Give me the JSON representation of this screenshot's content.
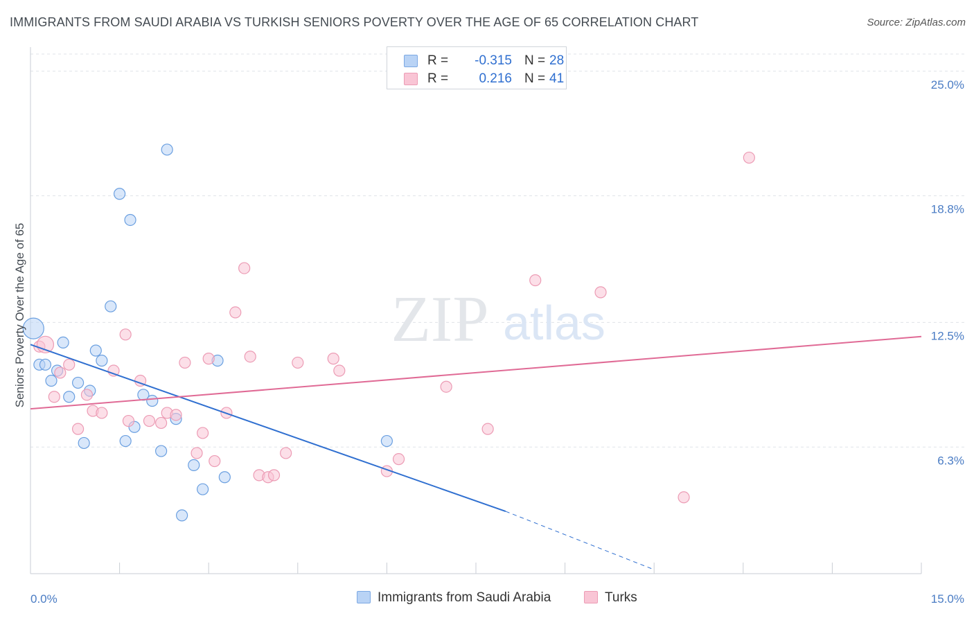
{
  "title": "IMMIGRANTS FROM SAUDI ARABIA VS TURKISH SENIORS POVERTY OVER THE AGE OF 65 CORRELATION CHART",
  "source": "Source: ZipAtlas.com",
  "watermark": {
    "zip": "ZIP",
    "atlas": "atlas"
  },
  "legend": {
    "r_label": "R =",
    "n_label": "N =",
    "rows": [
      {
        "r": "-0.315",
        "n": "28",
        "fill": "#b9d3f5",
        "stroke": "#7ba8e3"
      },
      {
        "r": "0.216",
        "n": "41",
        "fill": "#f9c5d5",
        "stroke": "#ec9bb4"
      }
    ]
  },
  "bottom_legend": [
    "Immigrants from Saudi Arabia",
    "Turks"
  ],
  "colors": {
    "blue": "#6a9fe0",
    "blue_line": "#2f6fd0",
    "pink": "#ec9bb4",
    "pink_line": "#e06a95",
    "tick": "#4a7cc4"
  },
  "chart_data": {
    "type": "scatter",
    "ylabel": "Seniors Poverty Over the Age of 65",
    "xlim": [
      0,
      15
    ],
    "ylim": [
      0,
      26.2
    ],
    "x_tick_labels": [
      "0.0%",
      "15.0%"
    ],
    "y_ticks": [
      6.3,
      12.5,
      18.8,
      25.0
    ],
    "y_tick_labels": [
      "6.3%",
      "12.5%",
      "18.8%",
      "25.0%"
    ],
    "grid": true,
    "series": [
      {
        "name": "Immigrants from Saudi Arabia",
        "color": "#6a9fe0",
        "points": [
          [
            0.05,
            12.2
          ],
          [
            0.15,
            10.4
          ],
          [
            0.25,
            10.4
          ],
          [
            0.35,
            9.6
          ],
          [
            0.45,
            10.1
          ],
          [
            0.55,
            11.5
          ],
          [
            0.65,
            8.8
          ],
          [
            0.8,
            9.5
          ],
          [
            0.9,
            6.5
          ],
          [
            1.0,
            9.1
          ],
          [
            1.1,
            11.1
          ],
          [
            1.2,
            10.6
          ],
          [
            1.35,
            13.3
          ],
          [
            1.5,
            18.9
          ],
          [
            1.6,
            6.6
          ],
          [
            1.68,
            17.6
          ],
          [
            1.75,
            7.3
          ],
          [
            1.9,
            8.9
          ],
          [
            2.05,
            8.6
          ],
          [
            2.2,
            6.1
          ],
          [
            2.3,
            21.1
          ],
          [
            2.45,
            7.7
          ],
          [
            2.55,
            2.9
          ],
          [
            2.75,
            5.4
          ],
          [
            2.9,
            4.2
          ],
          [
            3.15,
            10.6
          ],
          [
            3.27,
            4.8
          ],
          [
            6.0,
            6.6
          ]
        ],
        "trend": {
          "x0": 0,
          "y0": 11.4,
          "x1": 8.0,
          "y1": 3.1,
          "dash_x1": 10.5,
          "dash_y1": 0.2
        }
      },
      {
        "name": "Turks",
        "color": "#ec9bb4",
        "points": [
          [
            0.15,
            11.3
          ],
          [
            0.4,
            8.8
          ],
          [
            0.5,
            10.0
          ],
          [
            0.65,
            10.4
          ],
          [
            0.8,
            7.2
          ],
          [
            0.95,
            8.9
          ],
          [
            1.05,
            8.1
          ],
          [
            1.2,
            8.0
          ],
          [
            1.4,
            10.1
          ],
          [
            1.6,
            11.9
          ],
          [
            1.65,
            7.6
          ],
          [
            1.85,
            9.6
          ],
          [
            2.0,
            7.6
          ],
          [
            2.2,
            7.5
          ],
          [
            2.3,
            8.0
          ],
          [
            2.45,
            7.9
          ],
          [
            2.6,
            10.5
          ],
          [
            2.8,
            6.0
          ],
          [
            2.9,
            7.0
          ],
          [
            3.0,
            10.7
          ],
          [
            3.1,
            5.6
          ],
          [
            3.3,
            8.0
          ],
          [
            3.45,
            13.0
          ],
          [
            3.6,
            15.2
          ],
          [
            3.7,
            10.8
          ],
          [
            3.85,
            4.9
          ],
          [
            4.0,
            4.8
          ],
          [
            4.1,
            4.9
          ],
          [
            4.3,
            6.0
          ],
          [
            4.5,
            10.5
          ],
          [
            5.1,
            10.7
          ],
          [
            5.2,
            10.1
          ],
          [
            6.0,
            5.1
          ],
          [
            6.2,
            5.7
          ],
          [
            7.0,
            9.3
          ],
          [
            7.7,
            7.2
          ],
          [
            8.5,
            14.6
          ],
          [
            9.6,
            14.0
          ],
          [
            11.0,
            3.8
          ],
          [
            12.1,
            20.7
          ],
          [
            0.25,
            11.4
          ]
        ],
        "trend": {
          "x0": 0,
          "y0": 8.2,
          "x1": 15,
          "y1": 11.8
        }
      }
    ]
  }
}
